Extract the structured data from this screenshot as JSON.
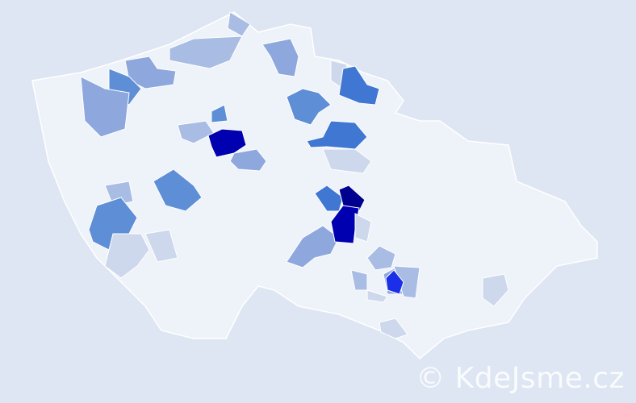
{
  "map": {
    "base_color": "#eef2f9",
    "border_color": "#ffffff",
    "background": "#dde6f2",
    "palette": [
      "#cdd8ec",
      "#a9bde4",
      "#8ea8de",
      "#5e8fd6",
      "#3f77d2",
      "#1b2fe8",
      "#0000b0",
      "#000090"
    ]
  },
  "watermark": {
    "text": "© KdeJsme.cz"
  }
}
